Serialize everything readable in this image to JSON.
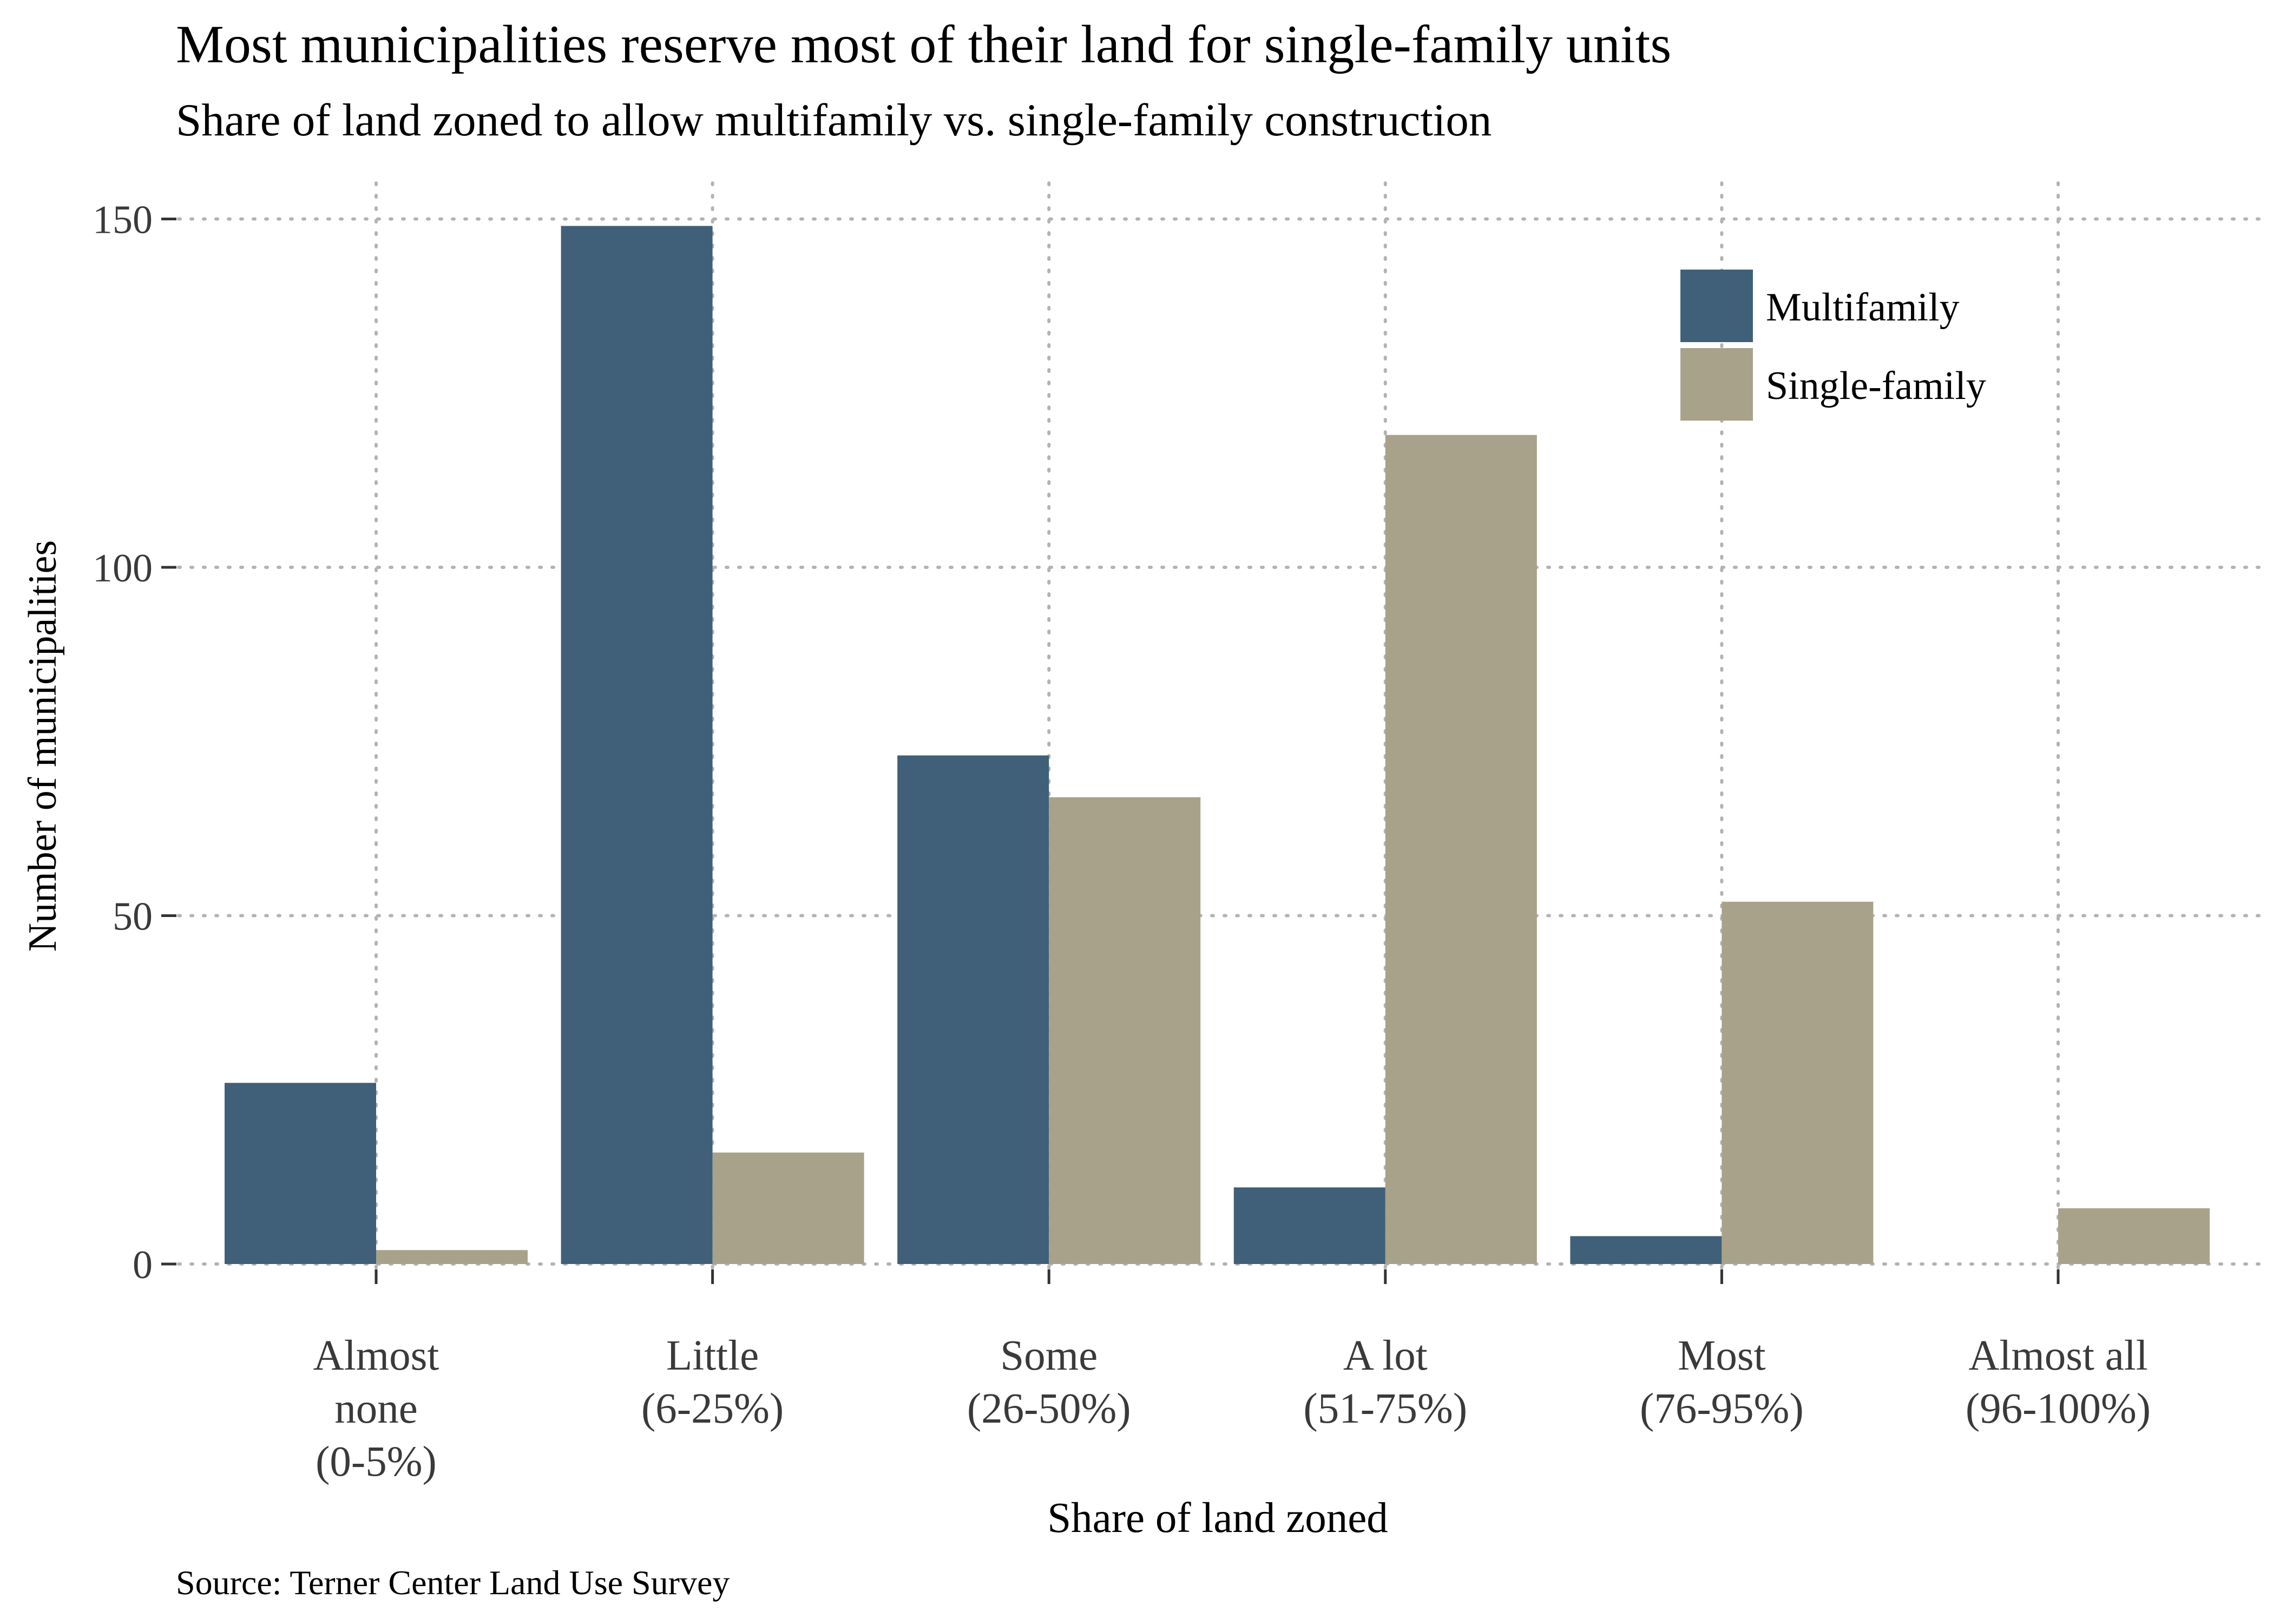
{
  "chart_data": {
    "type": "bar",
    "title": "Most municipalities reserve most of their land for single-family units",
    "subtitle": "Share of land zoned to allow multifamily vs. single-family construction",
    "xlabel": "Share of land zoned",
    "ylabel": "Number of municipalities",
    "source": "Source: Terner Center Land Use Survey",
    "categories": [
      [
        "Almost",
        "none",
        "(0-5%)"
      ],
      [
        "Little",
        "(6-25%)"
      ],
      [
        "Some",
        "(26-50%)"
      ],
      [
        "A lot",
        "(51-75%)"
      ],
      [
        "Most",
        "(76-95%)"
      ],
      [
        "Almost all",
        "(96-100%)"
      ]
    ],
    "series": [
      {
        "name": "Multifamily",
        "color": "#3f6078",
        "values": [
          26,
          149,
          73,
          11,
          4,
          0
        ]
      },
      {
        "name": "Single-family",
        "color": "#a8a28b",
        "values": [
          2,
          16,
          67,
          119,
          52,
          8
        ]
      }
    ],
    "yticks": [
      "0",
      "50",
      "100",
      "150"
    ],
    "ylim": [
      0,
      155
    ],
    "grid": true,
    "legend_position": "top-right"
  }
}
